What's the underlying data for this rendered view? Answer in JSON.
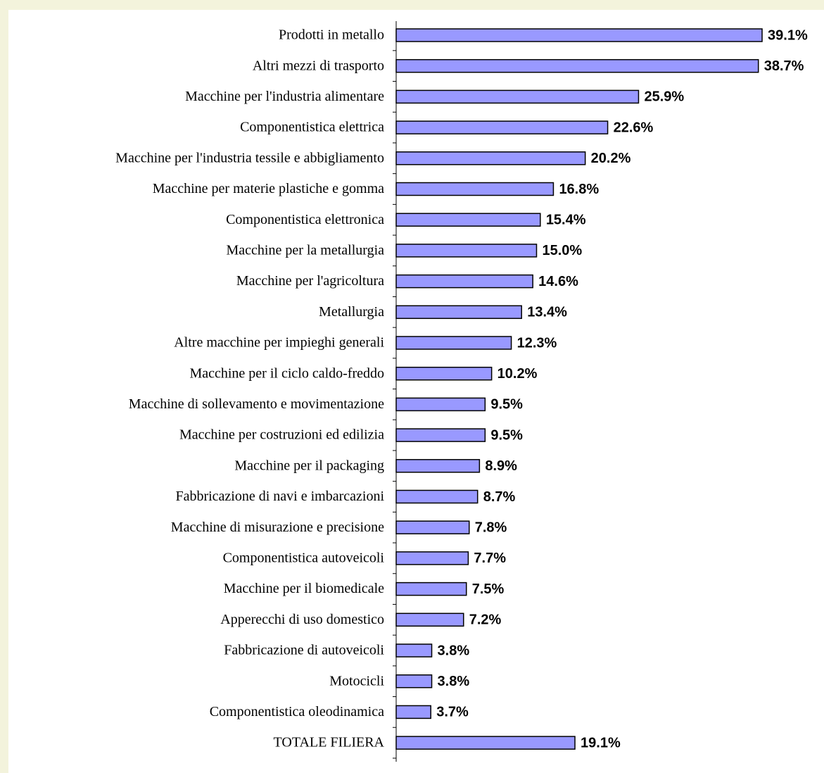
{
  "chart_data": {
    "type": "bar",
    "orientation": "horizontal",
    "categories": [
      "Prodotti in metallo",
      "Altri mezzi di trasporto",
      "Macchine per l'industria alimentare",
      "Componentistica elettrica",
      "Macchine per l'industria tessile e abbigliamento",
      "Macchine per materie plastiche e gomma",
      "Componentistica elettronica",
      "Macchine per la metallurgia",
      "Macchine per l'agricoltura",
      "Metallurgia",
      "Altre macchine per impieghi generali",
      "Macchine per il ciclo caldo-freddo",
      "Macchine di sollevamento e movimentazione",
      "Macchine per costruzioni ed edilizia",
      "Macchine per il packaging",
      "Fabbricazione di navi e imbarcazioni",
      "Macchine di misurazione e precisione",
      "Componentistica autoveicoli",
      "Macchine per il biomedicale",
      "Apperecchi di uso domestico",
      "Fabbricazione di autoveicoli",
      "Motocicli",
      "Componentistica oleodinamica",
      "TOTALE FILIERA"
    ],
    "values": [
      39.1,
      38.7,
      25.9,
      22.6,
      20.2,
      16.8,
      15.4,
      15.0,
      14.6,
      13.4,
      12.3,
      10.2,
      9.5,
      9.5,
      8.9,
      8.7,
      7.8,
      7.7,
      7.5,
      7.2,
      3.8,
      3.8,
      3.7,
      19.1
    ],
    "value_labels": [
      "39.1%",
      "38.7%",
      "25.9%",
      "22.6%",
      "20.2%",
      "16.8%",
      "15.4%",
      "15.0%",
      "14.6%",
      "13.4%",
      "12.3%",
      "10.2%",
      "9.5%",
      "9.5%",
      "8.9%",
      "8.7%",
      "7.8%",
      "7.7%",
      "7.5%",
      "7.2%",
      "3.8%",
      "3.8%",
      "3.7%",
      "19.1%"
    ],
    "color": "#9999ff",
    "xlim": [
      0,
      40
    ]
  }
}
